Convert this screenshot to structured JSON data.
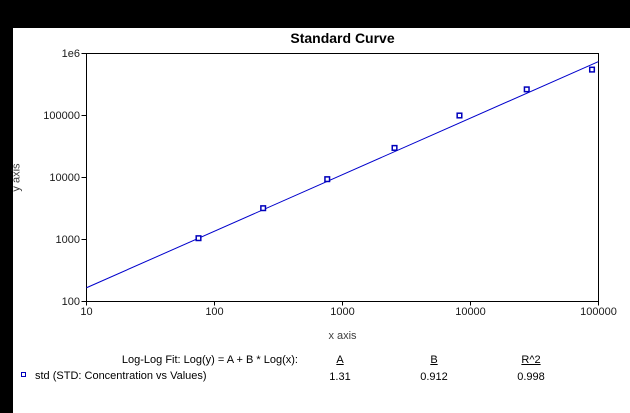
{
  "window": {
    "frame_color": "#000000",
    "canvas_color": "#ffffff"
  },
  "chart_data": {
    "type": "scatter",
    "title": "Standard Curve",
    "xlabel": "x axis",
    "ylabel": "y axis",
    "x_scale": "log",
    "y_scale": "log",
    "xlim": [
      10,
      100000
    ],
    "ylim": [
      100,
      1000000
    ],
    "grid": false,
    "x_ticks": [
      {
        "value": 10,
        "label": "10"
      },
      {
        "value": 100,
        "label": "100"
      },
      {
        "value": 1000,
        "label": "1000"
      },
      {
        "value": 10000,
        "label": "10000"
      },
      {
        "value": 100000,
        "label": "100000"
      }
    ],
    "y_ticks": [
      {
        "value": 100,
        "label": "100"
      },
      {
        "value": 1000,
        "label": "1000"
      },
      {
        "value": 10000,
        "label": "10000"
      },
      {
        "value": 100000,
        "label": "100000"
      },
      {
        "value": 1000000,
        "label": "1e6"
      }
    ],
    "series": [
      {
        "name": "std",
        "marker": "open-square",
        "color": "#0000bb",
        "points": [
          [
            75,
            1050
          ],
          [
            240,
            3200
          ],
          [
            760,
            9400
          ],
          [
            2550,
            30000
          ],
          [
            8200,
            100000
          ],
          [
            27500,
            264000
          ],
          [
            89000,
            550000
          ]
        ]
      }
    ],
    "fit_line": {
      "color": "#0000cc",
      "A": 1.31,
      "B": 0.912
    }
  },
  "annotation": {
    "fit_label": "Log-Log Fit: Log(y) = A + B * Log(x):",
    "columns": [
      {
        "header": "A",
        "value": "1.31"
      },
      {
        "header": "B",
        "value": "0.912"
      },
      {
        "header": "R^2",
        "value": "0.998"
      }
    ],
    "legend": {
      "marker_color": "#0000bb",
      "label": "std (STD: Concentration vs Values)"
    }
  }
}
